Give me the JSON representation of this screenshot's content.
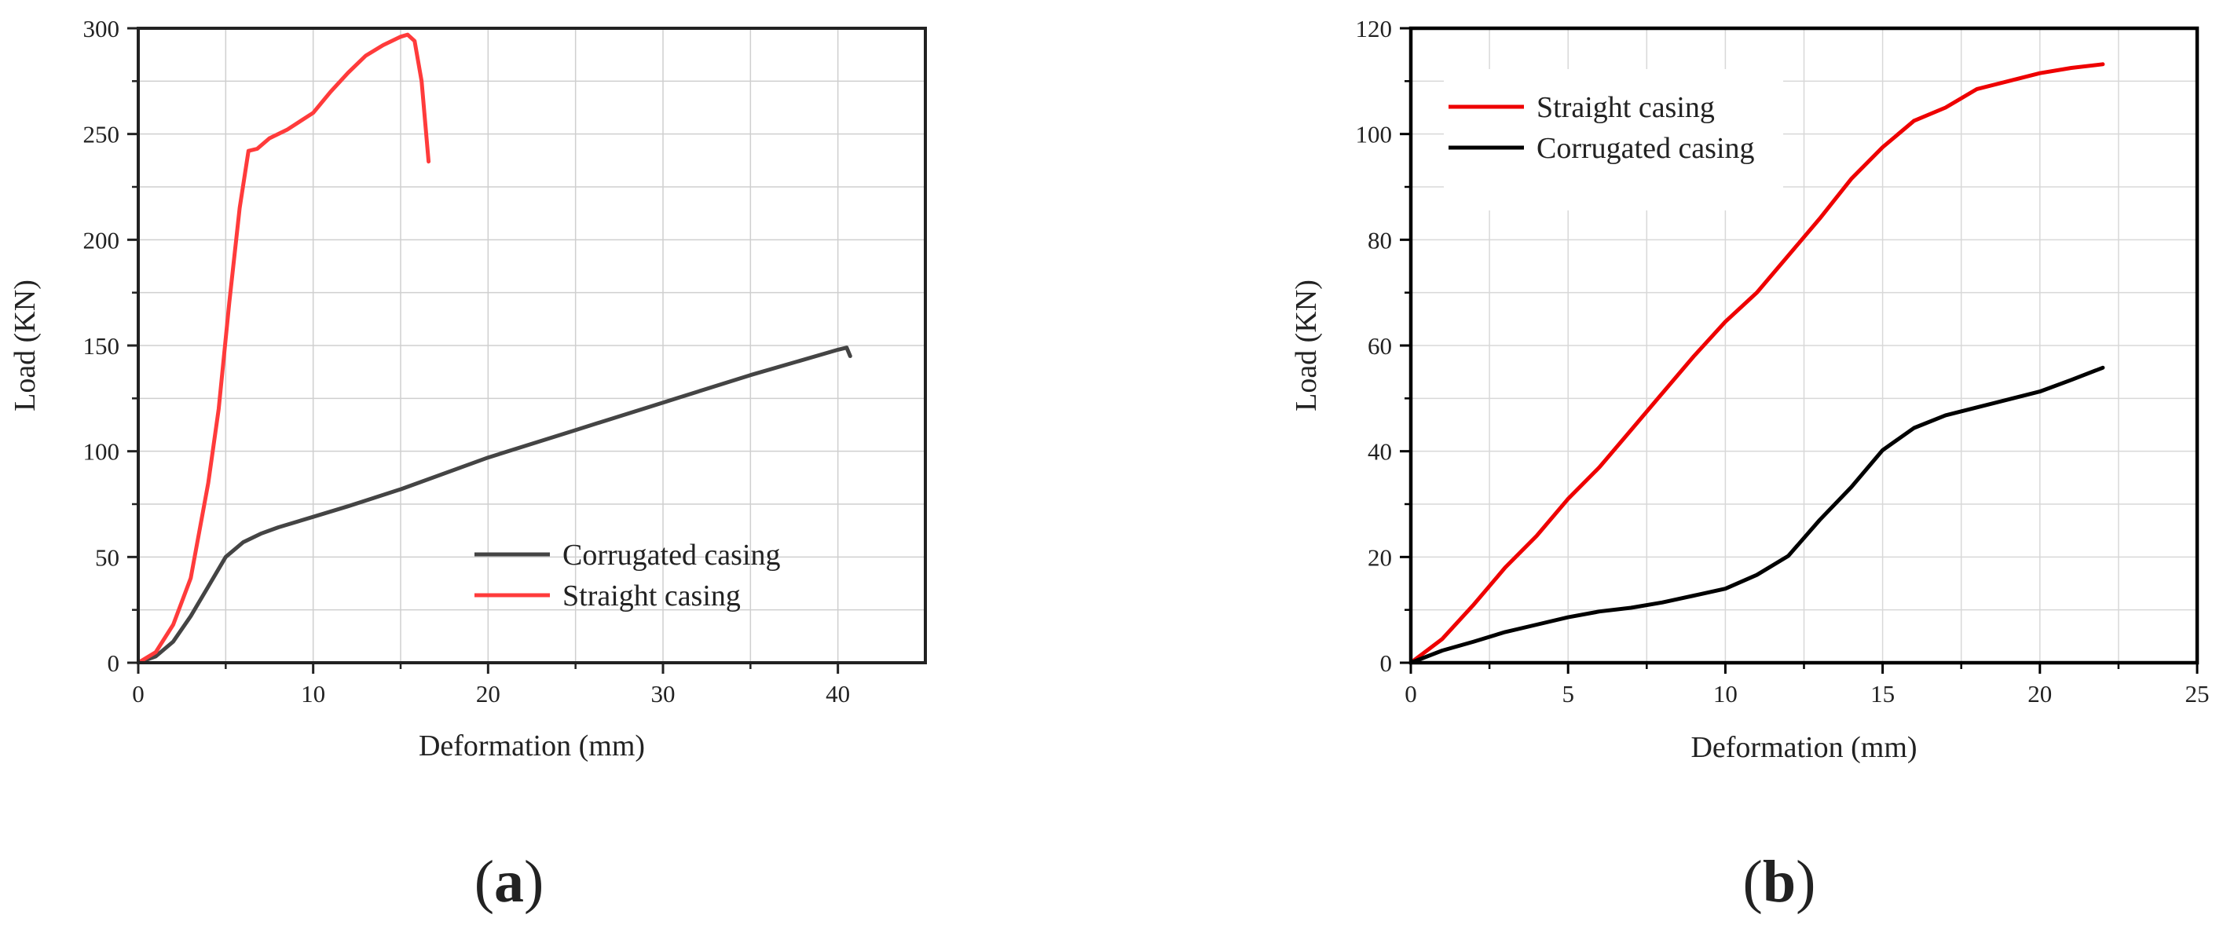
{
  "chart_data": [
    {
      "type": "line",
      "panel_label": "(a)",
      "xlabel": "Deformation (mm)",
      "ylabel": "Load (KN)",
      "xlim": [
        0,
        45
      ],
      "ylim": [
        0,
        300
      ],
      "xticks": [
        0,
        10,
        20,
        30,
        40
      ],
      "yticks": [
        0,
        50,
        100,
        150,
        200,
        250,
        300
      ],
      "grid": true,
      "legend_position": "lower-right",
      "series": [
        {
          "name": "Corrugated casing",
          "color": "#444444",
          "points": [
            [
              0,
              0
            ],
            [
              1,
              3
            ],
            [
              2,
              10
            ],
            [
              3,
              22
            ],
            [
              4,
              36
            ],
            [
              5,
              50
            ],
            [
              6,
              57
            ],
            [
              7,
              61
            ],
            [
              8,
              64
            ],
            [
              10,
              69
            ],
            [
              12,
              74
            ],
            [
              15,
              82
            ],
            [
              20,
              97
            ],
            [
              25,
              110
            ],
            [
              30,
              123
            ],
            [
              35,
              136
            ],
            [
              40,
              148
            ],
            [
              40.5,
              149
            ],
            [
              40.7,
              145
            ]
          ]
        },
        {
          "name": "Straight casing",
          "color": "#ff3b3b",
          "points": [
            [
              0,
              0
            ],
            [
              1,
              5
            ],
            [
              2,
              18
            ],
            [
              3,
              40
            ],
            [
              4,
              85
            ],
            [
              4.6,
              120
            ],
            [
              5.2,
              170
            ],
            [
              5.8,
              215
            ],
            [
              6.3,
              242
            ],
            [
              6.8,
              243
            ],
            [
              7.5,
              248
            ],
            [
              8.5,
              252
            ],
            [
              10,
              260
            ],
            [
              11,
              270
            ],
            [
              12,
              279
            ],
            [
              13,
              287
            ],
            [
              14,
              292
            ],
            [
              15,
              296
            ],
            [
              15.4,
              297
            ],
            [
              15.8,
              294
            ],
            [
              16.2,
              275
            ],
            [
              16.6,
              237
            ]
          ]
        }
      ]
    },
    {
      "type": "line",
      "panel_label": "(b)",
      "xlabel": "Deformation (mm)",
      "ylabel": "Load (KN)",
      "xlim": [
        0,
        25
      ],
      "ylim": [
        0,
        120
      ],
      "xticks": [
        0,
        5,
        10,
        15,
        20,
        25
      ],
      "yticks": [
        0,
        20,
        40,
        60,
        80,
        100,
        120
      ],
      "grid": true,
      "legend_position": "top-left",
      "series": [
        {
          "name": "Straight casing",
          "color": "#ee0000",
          "points": [
            [
              0,
              0
            ],
            [
              1,
              4.5
            ],
            [
              2,
              11
            ],
            [
              3,
              18
            ],
            [
              4,
              24
            ],
            [
              5,
              31
            ],
            [
              6,
              37
            ],
            [
              7,
              44
            ],
            [
              8,
              51
            ],
            [
              9,
              58
            ],
            [
              10,
              64.5
            ],
            [
              11,
              70
            ],
            [
              12,
              77
            ],
            [
              13,
              84
            ],
            [
              14,
              91.5
            ],
            [
              15,
              97.5
            ],
            [
              16,
              102.5
            ],
            [
              17,
              105
            ],
            [
              18,
              108.5
            ],
            [
              19,
              110
            ],
            [
              20,
              111.5
            ],
            [
              21,
              112.5
            ],
            [
              22,
              113.2
            ]
          ]
        },
        {
          "name": "Corrugated casing",
          "color": "#000000",
          "points": [
            [
              0,
              0
            ],
            [
              1,
              2.3
            ],
            [
              2,
              4
            ],
            [
              3,
              5.8
            ],
            [
              4,
              7.2
            ],
            [
              5,
              8.6
            ],
            [
              6,
              9.7
            ],
            [
              7,
              10.4
            ],
            [
              8,
              11.4
            ],
            [
              9,
              12.7
            ],
            [
              10,
              14
            ],
            [
              11,
              16.6
            ],
            [
              12,
              20.2
            ],
            [
              13,
              27
            ],
            [
              14,
              33.2
            ],
            [
              15,
              40.2
            ],
            [
              16,
              44.4
            ],
            [
              17,
              46.8
            ],
            [
              18,
              48.3
            ],
            [
              19,
              49.8
            ],
            [
              20,
              51.3
            ],
            [
              21,
              53.5
            ],
            [
              22,
              55.8
            ]
          ]
        }
      ]
    }
  ]
}
